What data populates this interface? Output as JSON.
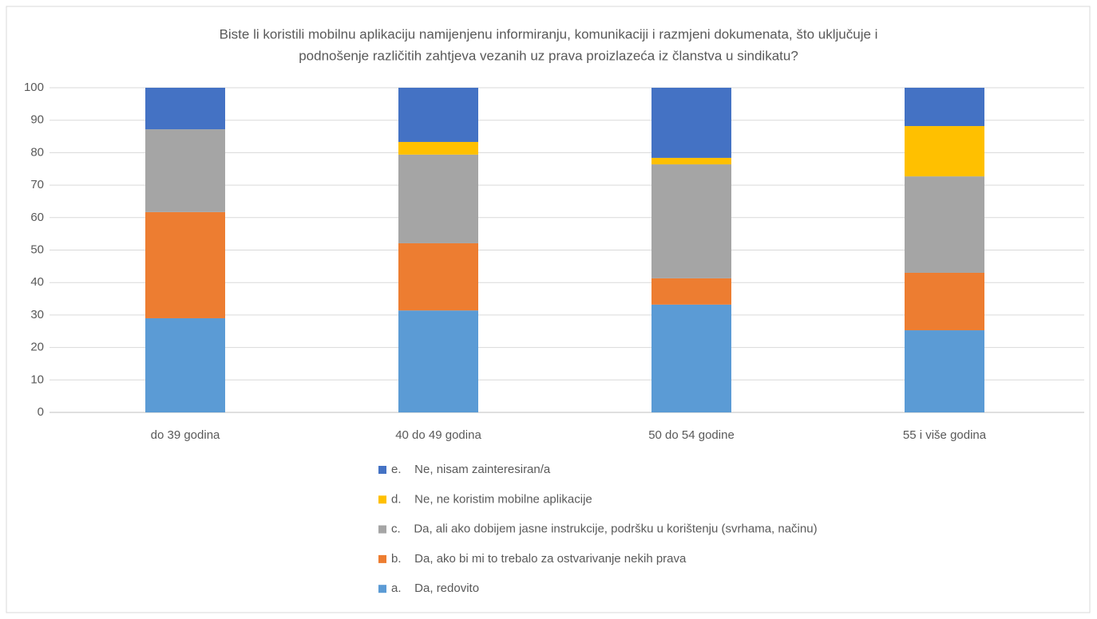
{
  "chart_data": {
    "type": "stacked_bar",
    "title": [
      "Biste li koristili mobilnu aplikaciju namijenjenu informiranju, komunikaciji i razmjeni dokumenata, što uključuje i",
      "podnošenje različitih zahtjeva vezanih uz prava proizlazeća iz članstva u sindikatu?"
    ],
    "categories": [
      "do 39 godina",
      "40 do 49 godina",
      "50 do 54 godine",
      "55 i više godina"
    ],
    "series": [
      {
        "name": "a.    Da, redovito",
        "color": "#5b9bd5",
        "values": [
          29.0,
          31.4,
          33.2,
          25.3
        ]
      },
      {
        "name": "b.    Da, ako bi mi to trebalo za ostvarivanje nekih prava",
        "color": "#ed7d31",
        "values": [
          32.7,
          20.7,
          8.1,
          17.7
        ]
      },
      {
        "name": "c.    Da, ali ako dobijem jasne instrukcije, podršku u korištenju (svrhama, načinu)",
        "color": "#a5a5a5",
        "values": [
          25.5,
          27.3,
          35.1,
          29.7
        ]
      },
      {
        "name": "d.    Ne, ne koristim mobilne aplikacije",
        "color": "#ffc000",
        "values": [
          0,
          3.9,
          2.0,
          15.5
        ]
      },
      {
        "name": "e.    Ne, nisam zainteresiran/a",
        "color": "#4472c4",
        "values": [
          12.8,
          16.7,
          21.6,
          11.8
        ]
      }
    ],
    "ylim": [
      0,
      100
    ],
    "yticks": [
      0,
      10,
      20,
      30,
      40,
      50,
      60,
      70,
      80,
      90,
      100
    ],
    "grid": true,
    "legend": "bottom"
  }
}
